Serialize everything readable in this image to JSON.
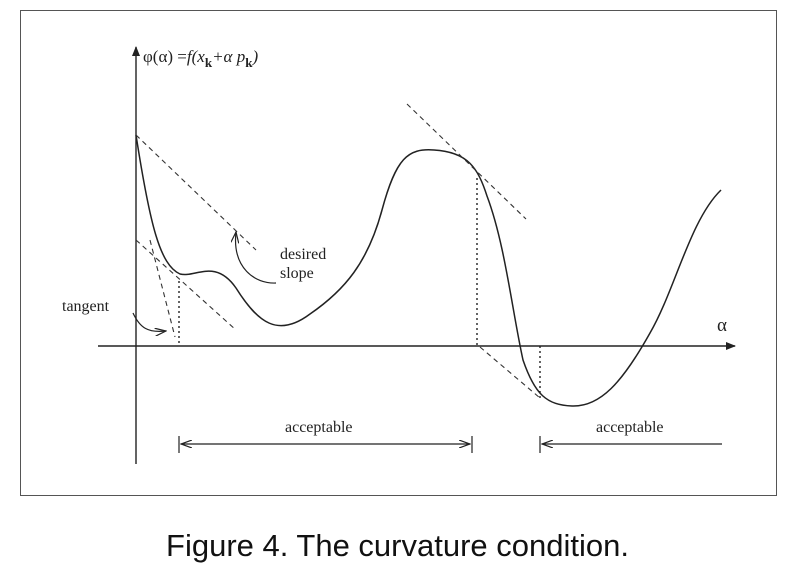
{
  "figure": {
    "y_axis_label_main": "φ(α) =",
    "y_axis_label_f": "f",
    "y_axis_label_args": "(x",
    "y_axis_label_sub1": "k",
    "y_axis_label_mid": "+α p",
    "y_axis_label_sub2": "k",
    "y_axis_label_close": ")",
    "x_axis_label": "α",
    "tangent_label": "tangent",
    "desired_label_line1": "desired",
    "desired_label_line2": "slope",
    "acceptable_label_1": "acceptable",
    "acceptable_label_2": "acceptable"
  },
  "caption": "Figure 4. The curvature condition."
}
